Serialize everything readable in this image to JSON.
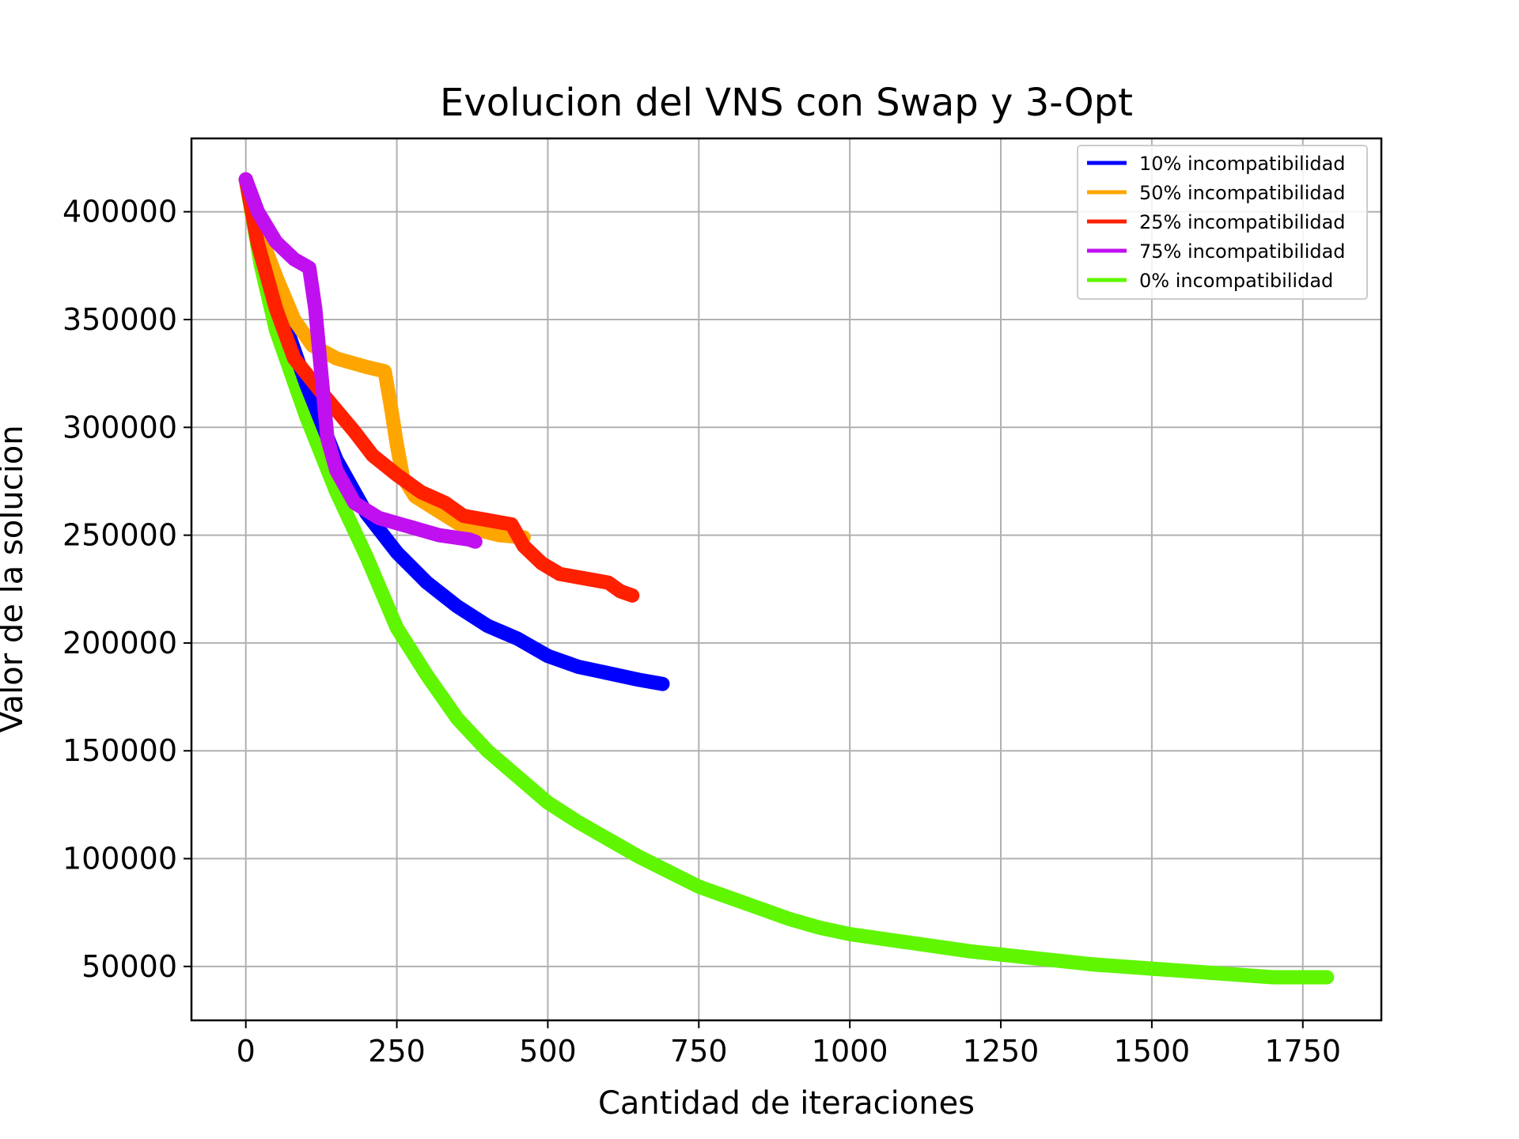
{
  "chart_data": {
    "type": "line",
    "title": "Evolucion del VNS con Swap y 3-Opt",
    "xlabel": "Cantidad de iteraciones",
    "ylabel": "Valor de la solucion",
    "xlim": [
      -90,
      1880
    ],
    "ylim": [
      25000,
      434000
    ],
    "xticks": [
      0,
      250,
      500,
      750,
      1000,
      1250,
      1500,
      1750
    ],
    "yticks": [
      50000,
      100000,
      150000,
      200000,
      250000,
      300000,
      350000,
      400000
    ],
    "grid": true,
    "legend_position": "top-right",
    "series": [
      {
        "name": "10% incompatibilidad",
        "color": "#0000ff",
        "points": [
          [
            0,
            415000
          ],
          [
            30,
            380000
          ],
          [
            60,
            352000
          ],
          [
            100,
            320000
          ],
          [
            150,
            285000
          ],
          [
            200,
            260000
          ],
          [
            250,
            242000
          ],
          [
            300,
            228000
          ],
          [
            350,
            217000
          ],
          [
            400,
            208000
          ],
          [
            450,
            202000
          ],
          [
            500,
            194000
          ],
          [
            550,
            189000
          ],
          [
            600,
            186000
          ],
          [
            650,
            183000
          ],
          [
            690,
            181000
          ]
        ]
      },
      {
        "name": "50% incompatibilidad",
        "color": "#ffa500",
        "points": [
          [
            0,
            415000
          ],
          [
            20,
            392000
          ],
          [
            50,
            370000
          ],
          [
            80,
            350000
          ],
          [
            110,
            338000
          ],
          [
            150,
            332000
          ],
          [
            200,
            328000
          ],
          [
            230,
            326000
          ],
          [
            240,
            310000
          ],
          [
            250,
            292000
          ],
          [
            260,
            277000
          ],
          [
            280,
            268000
          ],
          [
            320,
            261000
          ],
          [
            360,
            254000
          ],
          [
            420,
            250000
          ],
          [
            460,
            249000
          ]
        ]
      },
      {
        "name": "25% incompatibilidad",
        "color": "#ff2000",
        "points": [
          [
            0,
            415000
          ],
          [
            20,
            385000
          ],
          [
            50,
            355000
          ],
          [
            80,
            332000
          ],
          [
            120,
            318000
          ],
          [
            150,
            308000
          ],
          [
            180,
            298000
          ],
          [
            210,
            287000
          ],
          [
            250,
            278000
          ],
          [
            290,
            270000
          ],
          [
            330,
            265000
          ],
          [
            360,
            259000
          ],
          [
            400,
            257000
          ],
          [
            440,
            255000
          ],
          [
            460,
            245000
          ],
          [
            490,
            237000
          ],
          [
            520,
            232000
          ],
          [
            560,
            230000
          ],
          [
            600,
            228000
          ],
          [
            620,
            224000
          ],
          [
            640,
            222000
          ]
        ]
      },
      {
        "name": "75% incompatibilidad",
        "color": "#c010f0",
        "points": [
          [
            0,
            415000
          ],
          [
            20,
            400000
          ],
          [
            50,
            386000
          ],
          [
            80,
            378000
          ],
          [
            105,
            374000
          ],
          [
            115,
            355000
          ],
          [
            125,
            325000
          ],
          [
            135,
            295000
          ],
          [
            150,
            280000
          ],
          [
            180,
            265000
          ],
          [
            220,
            258000
          ],
          [
            270,
            254000
          ],
          [
            320,
            250000
          ],
          [
            370,
            248000
          ],
          [
            380,
            247000
          ]
        ]
      },
      {
        "name": "0% incompatibilidad",
        "color": "#60f500",
        "points": [
          [
            0,
            415000
          ],
          [
            25,
            375000
          ],
          [
            50,
            345000
          ],
          [
            100,
            305000
          ],
          [
            150,
            270000
          ],
          [
            200,
            240000
          ],
          [
            250,
            207000
          ],
          [
            300,
            185000
          ],
          [
            350,
            165000
          ],
          [
            400,
            150000
          ],
          [
            450,
            138000
          ],
          [
            500,
            126000
          ],
          [
            550,
            117000
          ],
          [
            600,
            109000
          ],
          [
            650,
            101000
          ],
          [
            700,
            94000
          ],
          [
            750,
            87000
          ],
          [
            800,
            82000
          ],
          [
            850,
            77000
          ],
          [
            900,
            72000
          ],
          [
            950,
            68000
          ],
          [
            1000,
            65000
          ],
          [
            1100,
            61000
          ],
          [
            1200,
            57000
          ],
          [
            1300,
            54000
          ],
          [
            1400,
            51000
          ],
          [
            1500,
            49000
          ],
          [
            1600,
            47000
          ],
          [
            1700,
            45000
          ],
          [
            1790,
            45000
          ]
        ]
      }
    ]
  }
}
